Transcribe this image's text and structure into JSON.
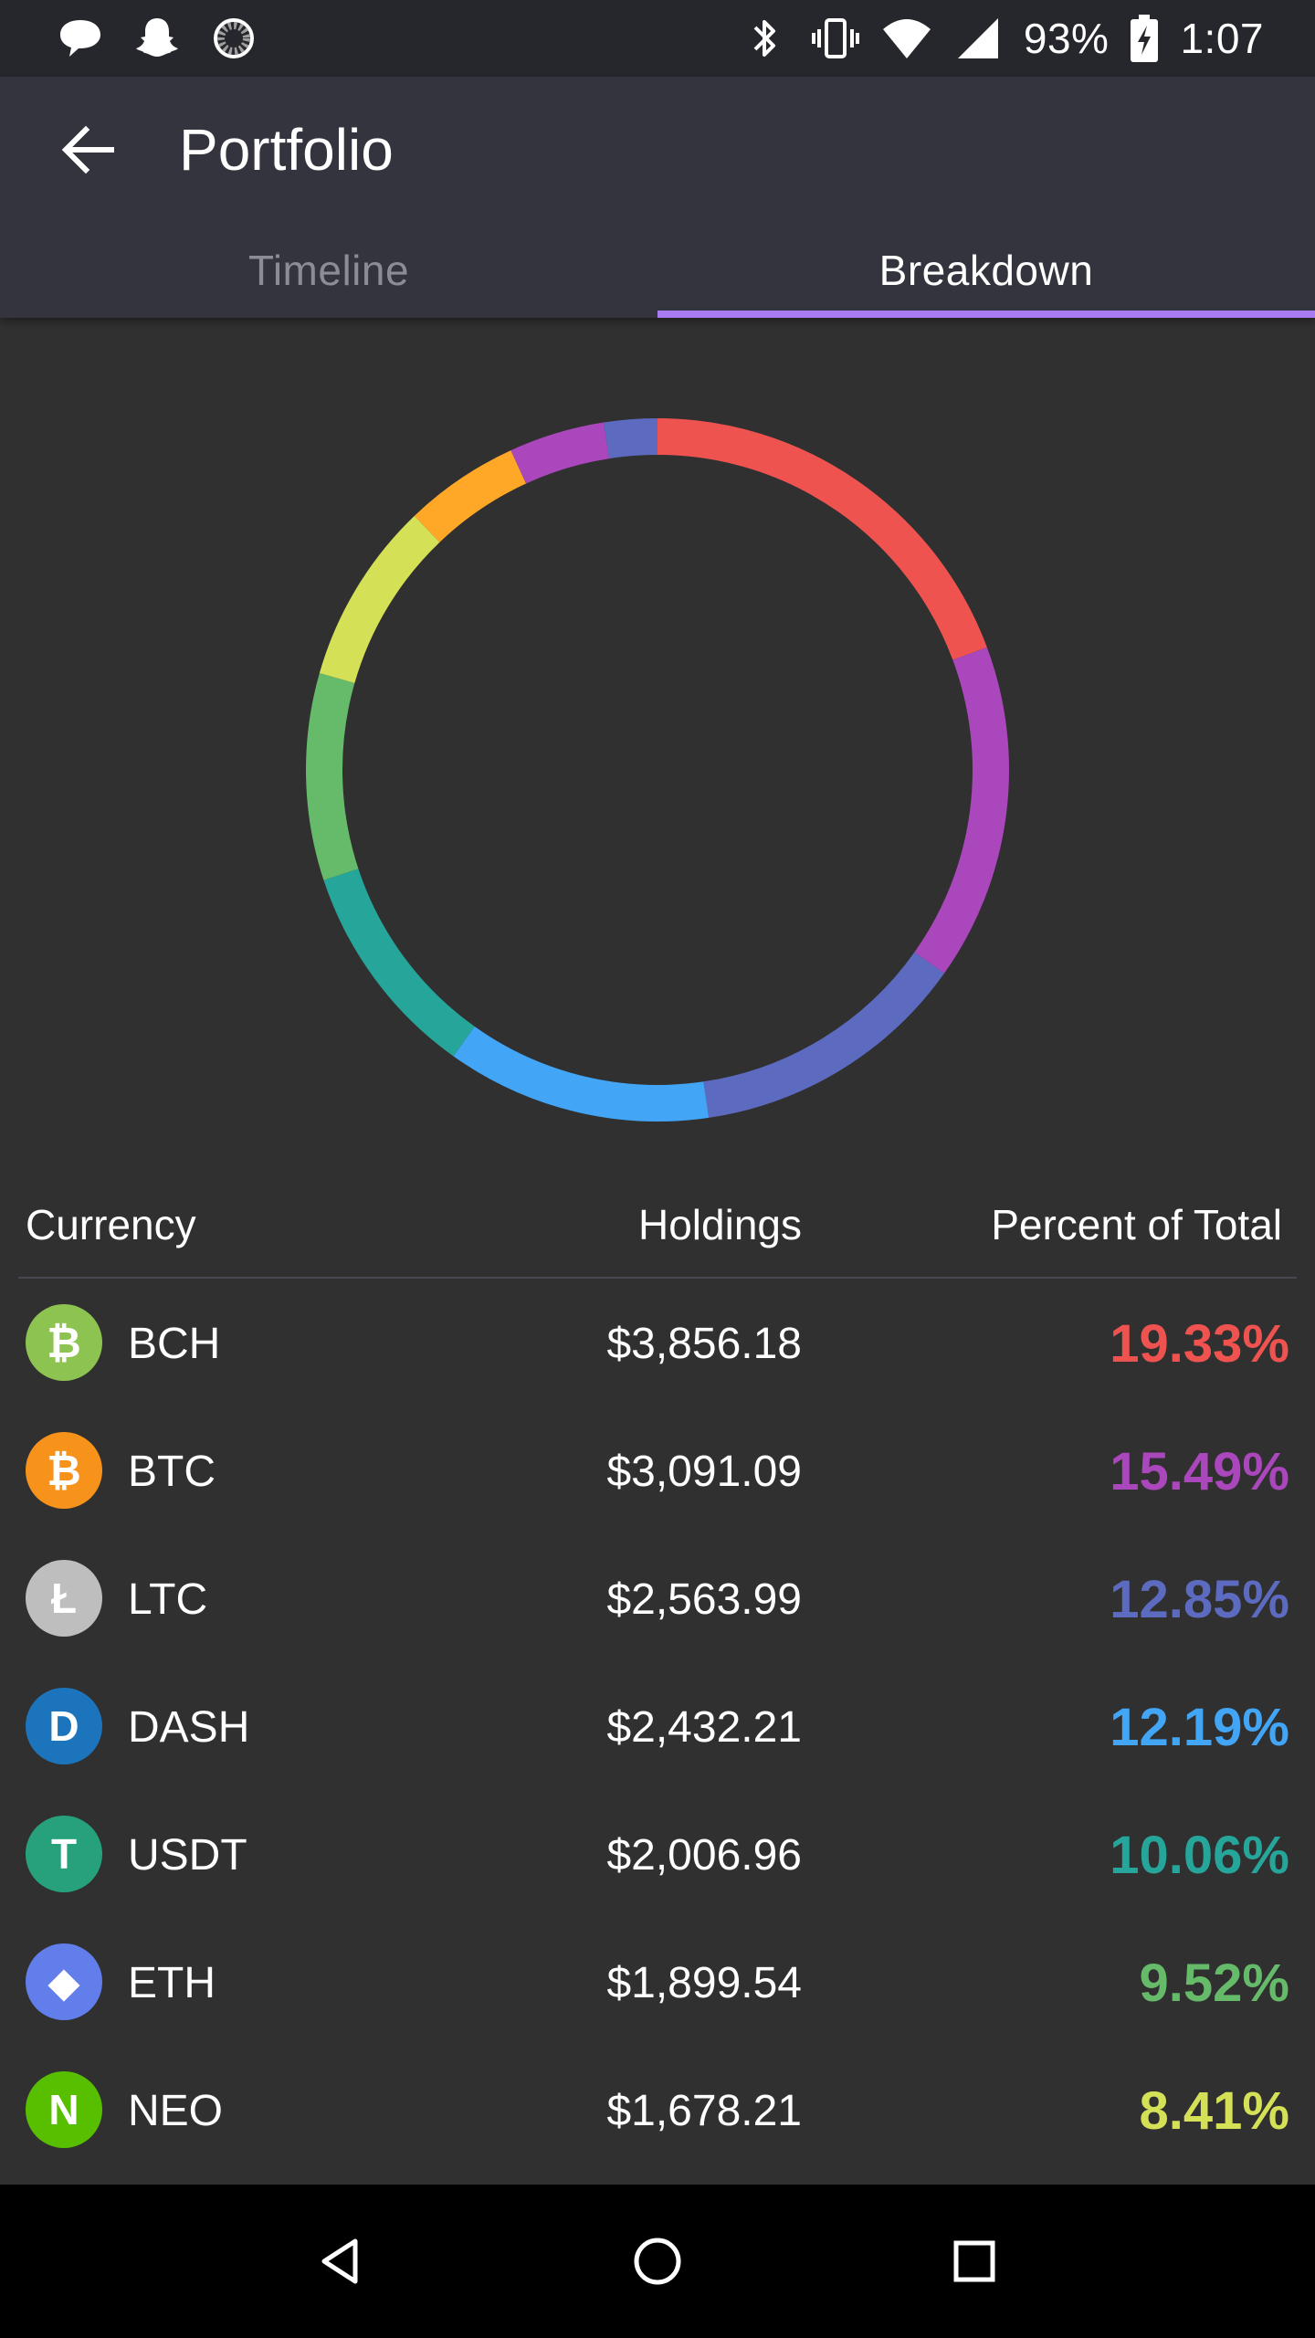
{
  "status_bar": {
    "battery_percent": "93%",
    "time": "1:07",
    "left_icons": [
      "chat-bubble-icon",
      "snapchat-ghost-icon",
      "loading-spinner-icon"
    ],
    "right_icons": [
      "bluetooth-icon",
      "vibrate-icon",
      "wifi-icon",
      "signal-icon",
      "battery-charging-icon"
    ]
  },
  "app_bar": {
    "title": "Portfolio",
    "back_icon": "arrow-back-icon"
  },
  "tabs": [
    {
      "label": "Timeline",
      "active": false
    },
    {
      "label": "Breakdown",
      "active": true
    }
  ],
  "table": {
    "headers": {
      "currency": "Currency",
      "holdings": "Holdings",
      "percent": "Percent of Total"
    },
    "rows": [
      {
        "symbol": "BCH",
        "holdings": "$3,856.18",
        "percent": "19.33%",
        "color": "#ef5350",
        "icon_bg": "#8dc451",
        "icon_glyph": "₿"
      },
      {
        "symbol": "BTC",
        "holdings": "$3,091.09",
        "percent": "15.49%",
        "color": "#ab47bc",
        "icon_bg": "#f7931a",
        "icon_glyph": "₿"
      },
      {
        "symbol": "LTC",
        "holdings": "$2,563.99",
        "percent": "12.85%",
        "color": "#5c6bc0",
        "icon_bg": "#bebebe",
        "icon_glyph": "Ł"
      },
      {
        "symbol": "DASH",
        "holdings": "$2,432.21",
        "percent": "12.19%",
        "color": "#42a5f5",
        "icon_bg": "#1c75bc",
        "icon_glyph": "D"
      },
      {
        "symbol": "USDT",
        "holdings": "$2,006.96",
        "percent": "10.06%",
        "color": "#26a69a",
        "icon_bg": "#26a17b",
        "icon_glyph": "T"
      },
      {
        "symbol": "ETH",
        "holdings": "$1,899.54",
        "percent": "9.52%",
        "color": "#66bb6a",
        "icon_bg": "#627eea",
        "icon_glyph": "◆"
      },
      {
        "symbol": "NEO",
        "holdings": "$1,678.21",
        "percent": "8.41%",
        "color": "#d4e157",
        "icon_bg": "#58bf00",
        "icon_glyph": "N"
      }
    ]
  },
  "chart_data": {
    "type": "pie",
    "style": "donut",
    "categories": [
      "BCH",
      "BTC",
      "LTC",
      "DASH",
      "USDT",
      "ETH",
      "NEO",
      "other-1",
      "other-2",
      "other-3"
    ],
    "values": [
      19.33,
      15.49,
      12.85,
      12.19,
      10.06,
      9.52,
      8.41,
      5.3,
      4.4,
      2.45
    ],
    "colors": [
      "#ef5350",
      "#ab47bc",
      "#5c6bc0",
      "#42a5f5",
      "#26a69a",
      "#66bb6a",
      "#d4e157",
      "#ffa726",
      "#ab47bc",
      "#5c6bc0"
    ]
  },
  "nav_bar": {
    "icons": [
      "nav-back-icon",
      "nav-home-icon",
      "nav-recents-icon"
    ]
  }
}
